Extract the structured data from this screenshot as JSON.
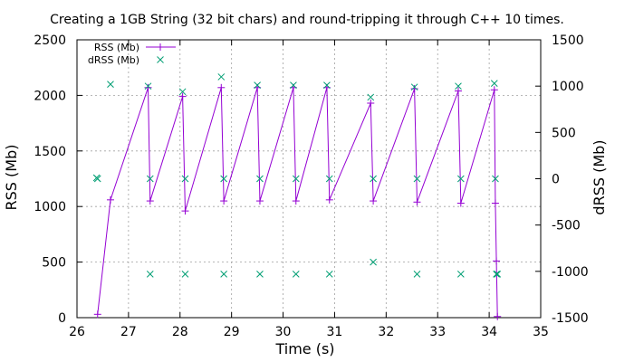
{
  "chart_data": {
    "type": "line",
    "title": "Creating a 1GB String (32 bit chars) and round-tripping it through C++ 10 times.",
    "xlabel": "Time (s)",
    "ylabel": "RSS (Mb)",
    "y2label": "dRSS (Mb)",
    "xlim": [
      26,
      35
    ],
    "ylim": [
      0,
      2500
    ],
    "y2lim": [
      -1500,
      1500
    ],
    "xticks": [
      26,
      27,
      28,
      29,
      30,
      31,
      32,
      33,
      34,
      35
    ],
    "yticks": [
      0,
      500,
      1000,
      1500,
      2000,
      2500
    ],
    "y2ticks": [
      -1500,
      -1000,
      -500,
      0,
      500,
      1000,
      1500
    ],
    "grid": true,
    "legend_position": "top-left",
    "series": [
      {
        "name": "RSS (Mb)",
        "axis": "left",
        "style": "linespoints",
        "color": "#9400d3",
        "x": [
          26.4,
          26.65,
          27.38,
          27.42,
          28.05,
          28.1,
          28.8,
          28.85,
          29.5,
          29.55,
          30.2,
          30.25,
          30.85,
          30.9,
          31.7,
          31.75,
          32.55,
          32.6,
          33.4,
          33.45,
          34.1,
          34.12,
          34.14,
          34.16
        ],
        "y": [
          30,
          1060,
          2070,
          1050,
          1990,
          960,
          2070,
          1050,
          2070,
          1050,
          2070,
          1050,
          2070,
          1060,
          1930,
          1050,
          2060,
          1040,
          2040,
          1030,
          2050,
          1030,
          510,
          10
        ]
      },
      {
        "name": "dRSS (Mb)",
        "axis": "right",
        "style": "points",
        "color": "#009e73",
        "x": [
          26.38,
          26.4,
          26.65,
          27.38,
          27.42,
          27.42,
          28.05,
          28.1,
          28.1,
          28.8,
          28.85,
          28.85,
          29.5,
          29.55,
          29.55,
          30.2,
          30.25,
          30.25,
          30.85,
          30.9,
          30.9,
          31.7,
          31.75,
          31.75,
          32.55,
          32.6,
          32.6,
          33.4,
          33.45,
          33.45,
          34.1,
          34.12,
          34.14,
          34.16
        ],
        "y": [
          10,
          0,
          1020,
          1000,
          0,
          -1030,
          940,
          0,
          -1030,
          1100,
          0,
          -1030,
          1010,
          0,
          -1030,
          1010,
          0,
          -1030,
          1010,
          0,
          -1030,
          880,
          0,
          -900,
          990,
          0,
          -1030,
          1000,
          0,
          -1030,
          1030,
          0,
          -1030,
          -1030
        ]
      }
    ]
  }
}
